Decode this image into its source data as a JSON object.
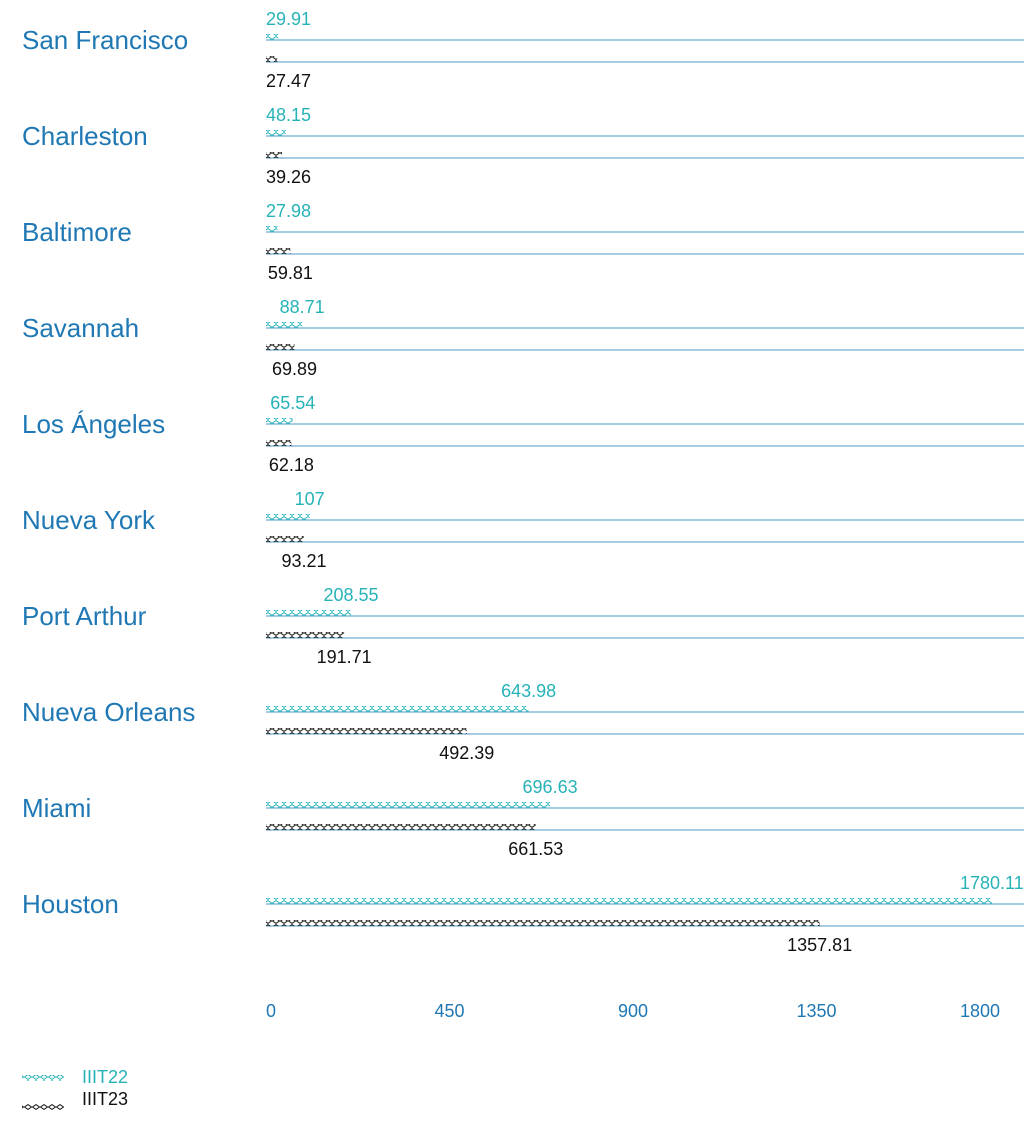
{
  "chart_data": {
    "type": "bar",
    "orientation": "horizontal",
    "categories": [
      "San Francisco",
      "Charleston",
      "Baltimore",
      "Savannah",
      "Los Ángeles",
      "Nueva York",
      "Port Arthur",
      "Nueva Orleans",
      "Miami",
      "Houston"
    ],
    "series": [
      {
        "name": "IIIT22",
        "color": "#26b3b8",
        "values": [
          29.91,
          48.15,
          27.98,
          88.71,
          65.54,
          107,
          208.55,
          643.98,
          696.63,
          1780.11
        ]
      },
      {
        "name": "IIIT23",
        "color": "#111111",
        "values": [
          27.47,
          39.26,
          59.81,
          69.89,
          62.18,
          93.21,
          191.71,
          492.39,
          661.53,
          1357.81
        ]
      }
    ],
    "xlim": [
      0,
      1800
    ],
    "xticks": [
      0,
      450,
      900,
      1350,
      1800
    ],
    "legend": "bottom-left"
  }
}
